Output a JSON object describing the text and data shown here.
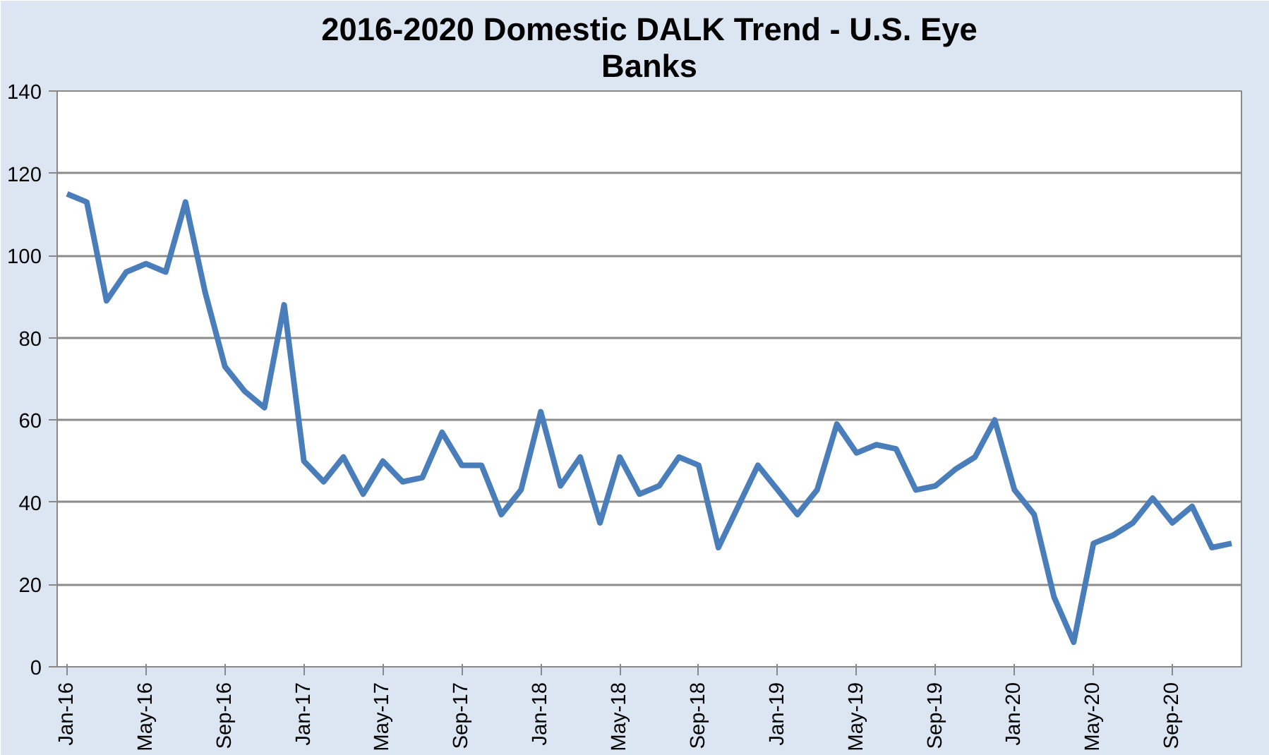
{
  "chart_data": {
    "type": "line",
    "title": "2016-2020 Domestic DALK Trend - U.S. Eye Banks",
    "categories": [
      "Jan-16",
      null,
      null,
      null,
      "May-16",
      null,
      null,
      null,
      "Sep-16",
      null,
      null,
      null,
      "Jan-17",
      null,
      null,
      null,
      "May-17",
      null,
      null,
      null,
      "Sep-17",
      null,
      null,
      null,
      "Jan-18",
      null,
      null,
      null,
      "May-18",
      null,
      null,
      null,
      "Sep-18",
      null,
      null,
      null,
      "Jan-19",
      null,
      null,
      null,
      "May-19",
      null,
      null,
      null,
      "Sep-19",
      null,
      null,
      null,
      "Jan-20",
      null,
      null,
      null,
      "May-20",
      null,
      null,
      null,
      "Sep-20",
      null,
      null,
      null
    ],
    "series": [
      {
        "color": "#4a7ebb",
        "values": [
          115,
          113,
          89,
          96,
          98,
          96,
          113,
          91,
          73,
          67,
          63,
          88,
          50,
          45,
          51,
          42,
          50,
          45,
          46,
          57,
          49,
          49,
          37,
          43,
          62,
          44,
          51,
          35,
          51,
          42,
          44,
          51,
          49,
          29,
          39,
          49,
          43,
          37,
          43,
          59,
          52,
          54,
          53,
          43,
          44,
          48,
          51,
          60,
          43,
          37,
          17,
          6,
          30,
          32,
          35,
          41,
          35,
          39,
          29,
          30
        ]
      }
    ],
    "ylim": [
      0,
      140
    ],
    "yticks": [
      0,
      20,
      40,
      60,
      80,
      100,
      120,
      140
    ],
    "grid": "y",
    "marker": "none",
    "line_style": "solid"
  }
}
